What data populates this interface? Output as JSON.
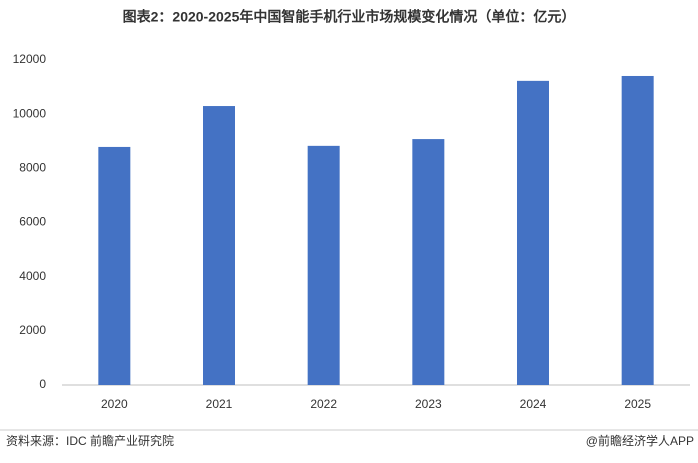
{
  "chart_data": {
    "type": "bar",
    "title": "图表2：2020-2025年中国智能手机行业市场规模变化情况（单位：亿元）",
    "categories": [
      "2020",
      "2021",
      "2022",
      "2023",
      "2024",
      "2025"
    ],
    "values": [
      8790,
      10300,
      8830,
      9080,
      11230,
      11410
    ],
    "color": "#4472c4",
    "ylim": [
      0,
      12000
    ],
    "yticks": [
      0,
      2000,
      4000,
      6000,
      8000,
      10000,
      12000
    ],
    "grid": false,
    "source": "资料来源：IDC  前瞻产业研究院",
    "credit": "@前瞻经济学人APP"
  }
}
